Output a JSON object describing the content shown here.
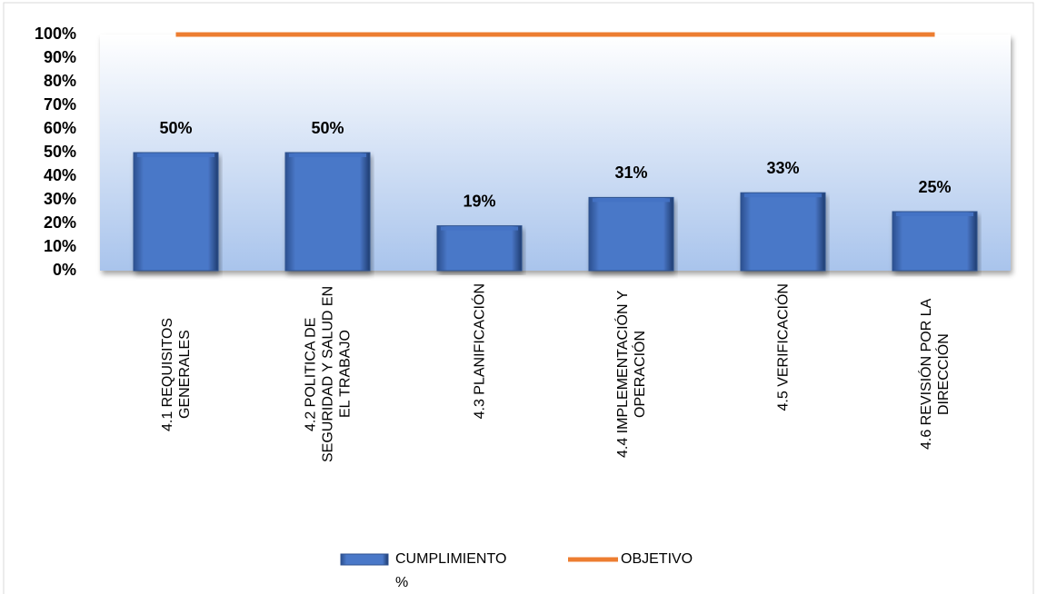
{
  "chart_data": {
    "type": "bar",
    "categories": [
      "4.1 REQUISITOS GENERALES",
      "4.2 POLITICA DE SEGURIDAD Y SALUD EN EL TRABAJO",
      "4.3 PLANIFICACIÓN",
      "4.4 IMPLEMENTACIÓN Y OPERACIÓN",
      "4.5 VERIFICACIÓN",
      "4.6 REVISIÓN POR LA DIRECCIÓN"
    ],
    "series": [
      {
        "name": "CUMPLIMIENTO %",
        "type": "bar",
        "color": "#4472c4",
        "values": [
          50,
          50,
          19,
          31,
          33,
          25
        ],
        "value_labels": [
          "50%",
          "50%",
          "19%",
          "31%",
          "33%",
          "25%"
        ]
      },
      {
        "name": "OBJETIVO",
        "type": "line",
        "color": "#ed7d31",
        "values": [
          100,
          100,
          100,
          100,
          100,
          100
        ]
      }
    ],
    "ylim": [
      0,
      100
    ],
    "yticks": [
      {
        "value": 0,
        "label": "0%"
      },
      {
        "value": 10,
        "label": "10%"
      },
      {
        "value": 20,
        "label": "20%"
      },
      {
        "value": 30,
        "label": "30%"
      },
      {
        "value": 40,
        "label": "40%"
      },
      {
        "value": 50,
        "label": "50%"
      },
      {
        "value": 60,
        "label": "60%"
      },
      {
        "value": 70,
        "label": "70%"
      },
      {
        "value": 80,
        "label": "80%"
      },
      {
        "value": 90,
        "label": "90%"
      },
      {
        "value": 100,
        "label": "100%"
      }
    ],
    "legend": "bottom"
  }
}
